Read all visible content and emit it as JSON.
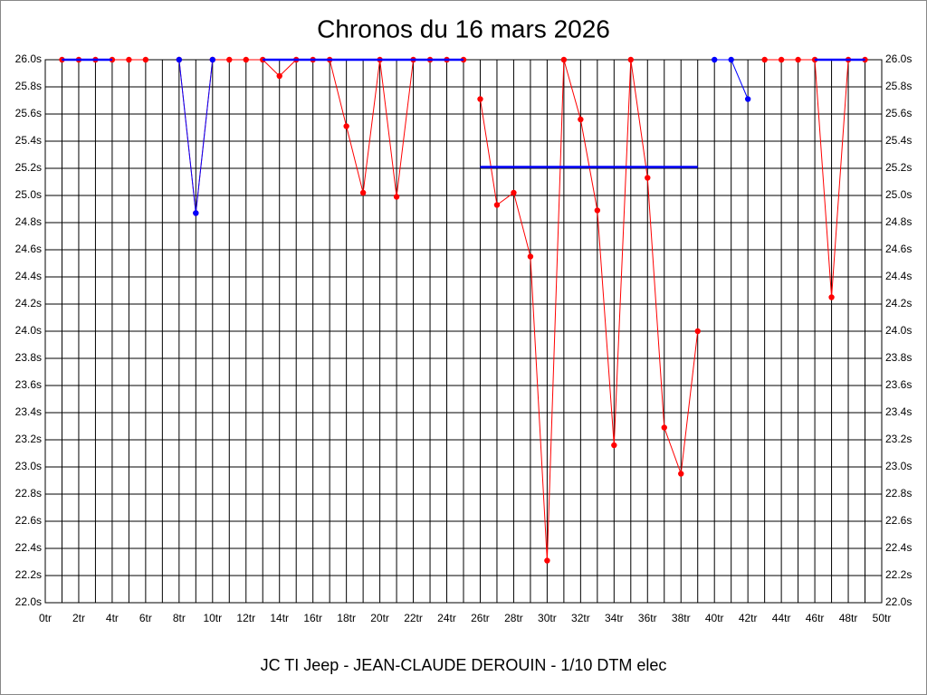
{
  "chart_data": {
    "type": "line",
    "title": "Chronos du 16 mars 2026",
    "x_label": "JC TI Jeep - JEAN-CLAUDE DEROUIN - 1/10 DTM elec",
    "xlim": [
      0,
      50
    ],
    "ylim": [
      22.0,
      26.0
    ],
    "grid": true,
    "xticks": [
      {
        "value": 0,
        "label": "0tr"
      },
      {
        "value": 2,
        "label": "2tr"
      },
      {
        "value": 4,
        "label": "4tr"
      },
      {
        "value": 6,
        "label": "6tr"
      },
      {
        "value": 8,
        "label": "8tr"
      },
      {
        "value": 10,
        "label": "10tr"
      },
      {
        "value": 12,
        "label": "12tr"
      },
      {
        "value": 14,
        "label": "14tr"
      },
      {
        "value": 16,
        "label": "16tr"
      },
      {
        "value": 18,
        "label": "18tr"
      },
      {
        "value": 20,
        "label": "20tr"
      },
      {
        "value": 22,
        "label": "22tr"
      },
      {
        "value": 24,
        "label": "24tr"
      },
      {
        "value": 26,
        "label": "26tr"
      },
      {
        "value": 28,
        "label": "28tr"
      },
      {
        "value": 30,
        "label": "30tr"
      },
      {
        "value": 32,
        "label": "32tr"
      },
      {
        "value": 34,
        "label": "34tr"
      },
      {
        "value": 36,
        "label": "36tr"
      },
      {
        "value": 38,
        "label": "38tr"
      },
      {
        "value": 40,
        "label": "40tr"
      },
      {
        "value": 42,
        "label": "42tr"
      },
      {
        "value": 44,
        "label": "44tr"
      },
      {
        "value": 46,
        "label": "46tr"
      },
      {
        "value": 48,
        "label": "48tr"
      },
      {
        "value": 50,
        "label": "50tr"
      }
    ],
    "x_minor_ticks": [
      1,
      3,
      5,
      7,
      9,
      11,
      13,
      15,
      17,
      19,
      21,
      23,
      25,
      27,
      29,
      31,
      33,
      35,
      37,
      39,
      41,
      43,
      45,
      47,
      49
    ],
    "yticks": [
      {
        "value": 22.0,
        "label": "22.0s"
      },
      {
        "value": 22.2,
        "label": "22.2s"
      },
      {
        "value": 22.4,
        "label": "22.4s"
      },
      {
        "value": 22.6,
        "label": "22.6s"
      },
      {
        "value": 22.8,
        "label": "22.8s"
      },
      {
        "value": 23.0,
        "label": "23.0s"
      },
      {
        "value": 23.2,
        "label": "23.2s"
      },
      {
        "value": 23.4,
        "label": "23.4s"
      },
      {
        "value": 23.6,
        "label": "23.6s"
      },
      {
        "value": 23.8,
        "label": "23.8s"
      },
      {
        "value": 24.0,
        "label": "24.0s"
      },
      {
        "value": 24.2,
        "label": "24.2s"
      },
      {
        "value": 24.4,
        "label": "24.4s"
      },
      {
        "value": 24.6,
        "label": "24.6s"
      },
      {
        "value": 24.8,
        "label": "24.8s"
      },
      {
        "value": 25.0,
        "label": "25.0s"
      },
      {
        "value": 25.2,
        "label": "25.2s"
      },
      {
        "value": 25.4,
        "label": "25.4s"
      },
      {
        "value": 25.6,
        "label": "25.6s"
      },
      {
        "value": 25.8,
        "label": "25.8s"
      },
      {
        "value": 26.0,
        "label": "26.0s"
      }
    ],
    "series": [
      {
        "color": "#ff0000",
        "markers": true,
        "line_width": 1,
        "x": [
          1,
          2,
          3,
          4,
          5,
          6
        ],
        "values": [
          26.0,
          26.0,
          26.0,
          26.0,
          26.0,
          26.0
        ]
      },
      {
        "color": "#ff0000",
        "markers": true,
        "line_width": 1,
        "x": [
          8,
          9,
          10,
          11,
          12,
          13,
          14,
          15,
          16,
          17,
          18,
          19,
          20,
          21,
          22,
          23,
          24,
          25
        ],
        "values": [
          26.0,
          24.87,
          26.0,
          26.0,
          26.0,
          26.0,
          25.88,
          26.0,
          26.0,
          26.0,
          25.51,
          25.02,
          26.0,
          24.99,
          26.0,
          26.0,
          26.0,
          26.0
        ]
      },
      {
        "color": "#ff0000",
        "markers": true,
        "line_width": 1,
        "x": [
          26,
          27,
          28,
          29,
          30,
          31,
          32,
          33,
          34,
          35,
          36,
          37,
          38,
          39
        ],
        "values": [
          25.71,
          24.93,
          25.02,
          24.55,
          22.31,
          26.0,
          25.56,
          24.89,
          23.16,
          26.0,
          25.13,
          23.29,
          22.95,
          24.0
        ]
      },
      {
        "color": "#0000ff",
        "markers": true,
        "line_width": 1,
        "x": [
          40,
          41,
          42
        ],
        "values": [
          26.0,
          26.0,
          25.71
        ]
      },
      {
        "color": "#ff0000",
        "markers": true,
        "line_width": 1,
        "x": [
          43,
          44,
          45,
          46,
          47,
          48,
          49
        ],
        "values": [
          26.0,
          26.0,
          26.0,
          26.0,
          24.25,
          26.0,
          26.0
        ]
      },
      {
        "color": "#0000ff",
        "markers": true,
        "line_width": 1,
        "x": [
          8,
          9,
          10
        ],
        "values": [
          26.0,
          24.87,
          26.0
        ]
      },
      {
        "color": "#0000ff",
        "markers": false,
        "line_width": 2.5,
        "x": [
          1,
          4
        ],
        "values": [
          26.0,
          26.0
        ]
      },
      {
        "color": "#0000ff",
        "markers": false,
        "line_width": 2.5,
        "x": [
          13,
          25
        ],
        "values": [
          26.0,
          26.0
        ]
      },
      {
        "color": "#0000ff",
        "markers": false,
        "line_width": 2.5,
        "x": [
          26,
          39
        ],
        "values": [
          25.21,
          25.21
        ]
      },
      {
        "color": "#0000ff",
        "markers": false,
        "line_width": 2.5,
        "x": [
          46,
          49
        ],
        "values": [
          26.0,
          26.0
        ]
      }
    ]
  }
}
